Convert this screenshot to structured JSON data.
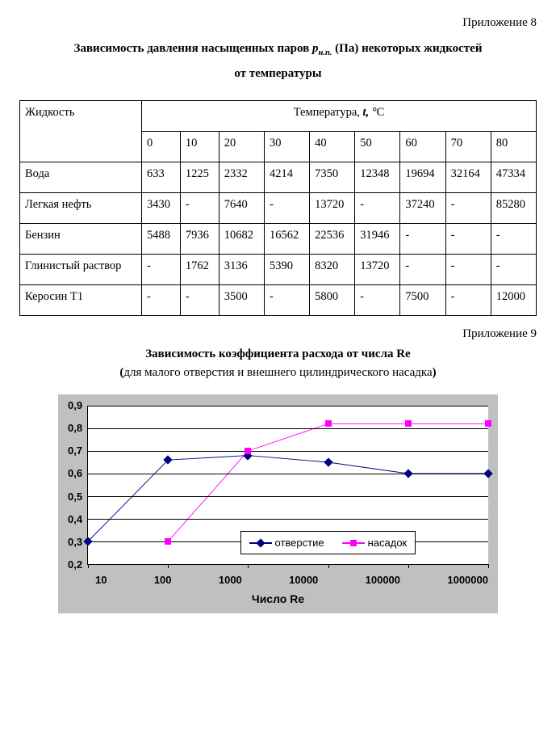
{
  "appendix8": "Приложение 8",
  "title8_line1_a": "Зависимость давления насыщенных паров ",
  "title8_line1_sym": "p",
  "title8_line1_sub": "н.п.",
  "title8_line1_b": " (Па) некоторых жидкостей",
  "title8_line2": "от температуры",
  "table": {
    "col0": "Жидкость",
    "temp_header_a": "Температура, ",
    "temp_header_sym": "t, °",
    "temp_header_b": "С",
    "temps": [
      "0",
      "10",
      "20",
      "30",
      "40",
      "50",
      "60",
      "70",
      "80"
    ],
    "rows": [
      {
        "name": "Вода",
        "cells": [
          "633",
          "1225",
          "2332",
          "4214",
          "7350",
          "12348",
          "19694",
          "32164",
          "47334"
        ]
      },
      {
        "name": "Легкая нефть",
        "cells": [
          "3430",
          "-",
          "7640",
          "-",
          "13720",
          "-",
          "37240",
          "-",
          "85280"
        ]
      },
      {
        "name": "Бензин",
        "cells": [
          "5488",
          "7936",
          "10682",
          "16562",
          "22536",
          "31946",
          "-",
          "-",
          "-"
        ]
      },
      {
        "name": "Глинистый раствор",
        "cells": [
          "-",
          "1762",
          "3136",
          "5390",
          "8320",
          "13720",
          "-",
          "-",
          "-"
        ]
      },
      {
        "name": "Керосин Т1",
        "cells": [
          "-",
          "-",
          "3500",
          "-",
          "5800",
          "-",
          "7500",
          "-",
          "12000"
        ]
      }
    ]
  },
  "appendix9": "Приложение 9",
  "title9": "Зависимость коэффициента расхода от числа Re",
  "subtitle9_a": "(",
  "subtitle9_b": "для малого отверстия и внешнего цилиндрического насадка",
  "subtitle9_c": ")",
  "chart": {
    "type": "line",
    "x_scale": "log",
    "xticks": [
      "10",
      "100",
      "1000",
      "10000",
      "100000",
      "1000000"
    ],
    "ylim": [
      0.2,
      0.9
    ],
    "yticks": [
      "0,9",
      "0,8",
      "0,7",
      "0,6",
      "0,5",
      "0,4",
      "0,3",
      "0,2"
    ],
    "grid_color": "#000000",
    "background_color": "#c0c0c0",
    "plot_background": "#ffffff",
    "xaxis_title": "Число Re",
    "label_fontsize": 13,
    "series": [
      {
        "name": "отверстие",
        "color": "#000080",
        "marker": "diamond",
        "x": [
          10,
          100,
          1000,
          10000,
          100000,
          1000000
        ],
        "y": [
          0.3,
          0.66,
          0.68,
          0.65,
          0.6,
          0.6
        ]
      },
      {
        "name": "насадок",
        "color": "#ff00ff",
        "marker": "square",
        "x": [
          100,
          1000,
          10000,
          100000,
          1000000
        ],
        "y": [
          0.3,
          0.7,
          0.82,
          0.82,
          0.82
        ]
      }
    ],
    "legend": {
      "items": [
        "отверстие",
        "насадок"
      ]
    }
  }
}
